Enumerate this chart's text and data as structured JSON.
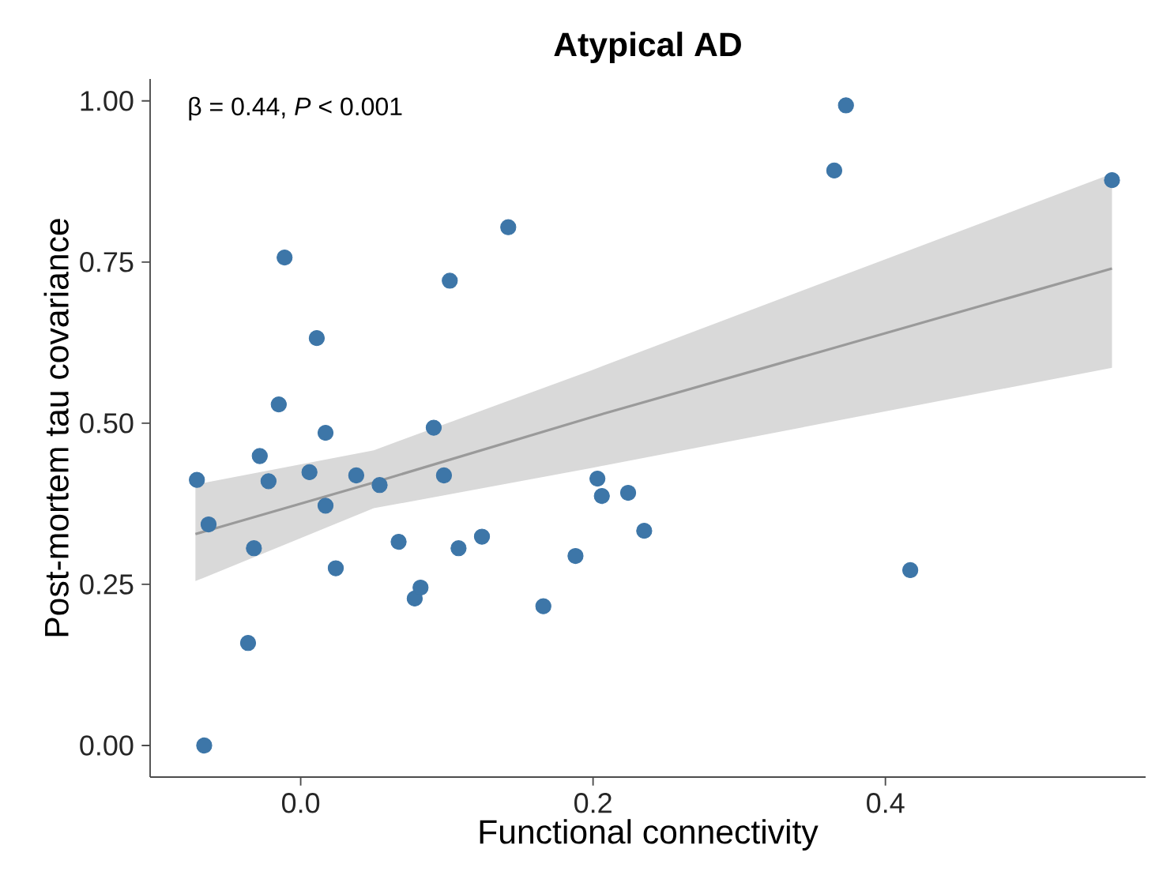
{
  "chart_data": {
    "type": "scatter",
    "title": "Atypical AD",
    "xlabel": "Functional connectivity",
    "ylabel": "Post-mortem tau covariance",
    "marker": "circle",
    "annotations": [
      "β = 0.44, *P* < 0.001"
    ],
    "xlim": [
      -0.103,
      0.578
    ],
    "ylim": [
      -0.049,
      1.034
    ],
    "xticks": [
      {
        "value": 0,
        "label": "0.0"
      },
      {
        "value": 0.2,
        "label": "0.2"
      },
      {
        "value": 0.4,
        "label": "0.4"
      }
    ],
    "yticks": [
      {
        "value": 0,
        "label": "0.00"
      },
      {
        "value": 0.25,
        "label": "0.25"
      },
      {
        "value": 0.5,
        "label": "0.50"
      },
      {
        "value": 0.75,
        "label": "0.75"
      },
      {
        "value": 1,
        "label": "1.00"
      }
    ],
    "series": [
      {
        "type": "line",
        "marker": "none",
        "color": "#9a9a9a",
        "x": [
          -0.072,
          0.05,
          0.2,
          0.555
        ],
        "values": [
          0.328,
          0.408,
          0.51,
          0.74
        ],
        "lower": [
          0.255,
          0.368,
          0.431,
          0.586
        ],
        "upper": [
          0.405,
          0.458,
          0.583,
          0.887
        ]
      },
      {
        "color": "#3d76a8",
        "x": [
          -0.071,
          -0.063,
          -0.066,
          -0.036,
          -0.032,
          -0.028,
          -0.022,
          -0.015,
          -0.011,
          0.006,
          0.011,
          0.017,
          0.017,
          0.024,
          0.038,
          0.054,
          0.067,
          0.078,
          0.082,
          0.091,
          0.098,
          0.102,
          0.108,
          0.124,
          0.142,
          0.166,
          0.188,
          0.203,
          0.206,
          0.224,
          0.235,
          0.365,
          0.373,
          0.417,
          0.555
        ],
        "values": [
          0.412,
          0.343,
          0.0,
          0.159,
          0.306,
          0.449,
          0.41,
          0.529,
          0.757,
          0.424,
          0.632,
          0.485,
          0.372,
          0.275,
          0.419,
          0.404,
          0.316,
          0.228,
          0.245,
          0.493,
          0.419,
          0.721,
          0.306,
          0.324,
          0.804,
          0.216,
          0.294,
          0.414,
          0.387,
          0.392,
          0.333,
          0.892,
          0.993,
          0.272,
          0.877
        ]
      }
    ]
  }
}
